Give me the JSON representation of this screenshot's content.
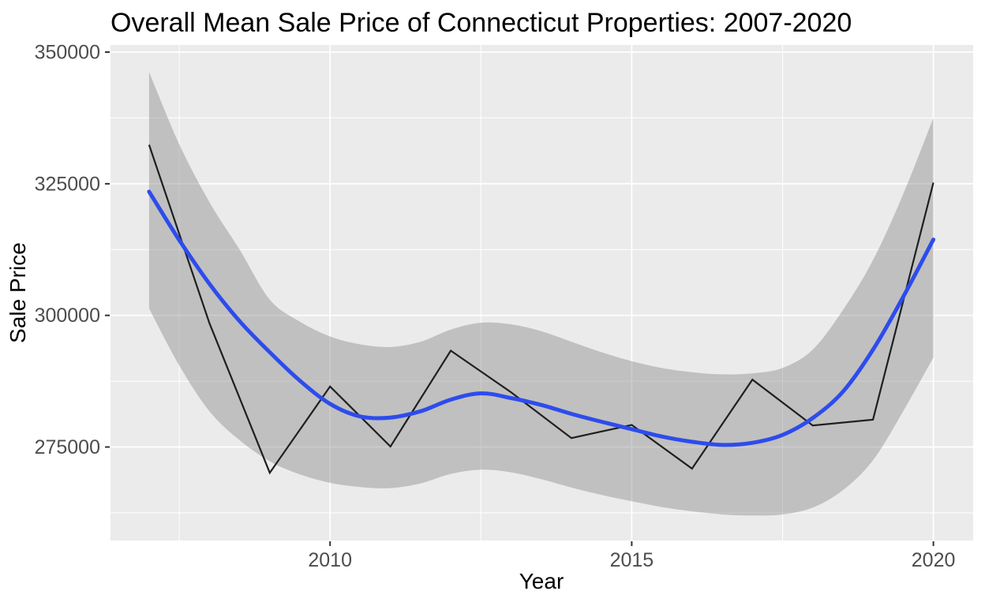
{
  "chart_data": {
    "type": "line",
    "title": "Overall Mean Sale Price of Connecticut Properties: 2007-2020",
    "xlabel": "Year",
    "ylabel": "Sale Price",
    "legend": "none",
    "grid": "on",
    "panel_bg": "#EBEBEB",
    "grid_color": "#FFFFFF",
    "tick_mark_color": "#333333",
    "tick_label_color": "#4D4D4D",
    "x_axis": {
      "lim": [
        2006.36,
        2020.66
      ],
      "major_ticks": [
        {
          "value": 2010,
          "label": "2010"
        },
        {
          "value": 2015,
          "label": "2015"
        },
        {
          "value": 2020,
          "label": "2020"
        }
      ],
      "minor_ticks": [
        2007.5,
        2012.5,
        2017.5
      ]
    },
    "y_axis": {
      "lim": [
        257250,
        351350
      ],
      "major_ticks": [
        {
          "value": 350000,
          "label": "350000"
        },
        {
          "value": 325000,
          "label": "325000"
        },
        {
          "value": 300000,
          "label": "300000"
        },
        {
          "value": 275000,
          "label": "275000"
        }
      ],
      "minor_ticks": [
        337500,
        312500,
        287500,
        262500
      ]
    },
    "series": [
      {
        "name": "mean_sale_price",
        "kind": "line",
        "color": "#1F1F1F",
        "width": 2.2,
        "x": [
          2007,
          2008,
          2009,
          2010,
          2011,
          2012,
          2013,
          2014,
          2015,
          2016,
          2017,
          2018,
          2019,
          2020
        ],
        "values": [
          332400,
          298500,
          270100,
          286500,
          275100,
          293300,
          285400,
          276700,
          279200,
          270900,
          287800,
          279100,
          280200,
          325200
        ]
      },
      {
        "name": "loess_smooth",
        "kind": "smooth",
        "color": "#2D4CEC",
        "width": 5,
        "x": [
          2007,
          2007.5,
          2008,
          2008.5,
          2009,
          2009.5,
          2010,
          2010.5,
          2011,
          2011.5,
          2012,
          2012.5,
          2013,
          2013.5,
          2014,
          2014.5,
          2015,
          2015.5,
          2016,
          2016.5,
          2017,
          2017.5,
          2018,
          2018.5,
          2019,
          2019.5,
          2020
        ],
        "values": [
          323500,
          314300,
          306000,
          298900,
          293000,
          287600,
          283200,
          280800,
          280600,
          281800,
          284000,
          285200,
          284300,
          283000,
          281300,
          279800,
          278400,
          277000,
          276000,
          275400,
          275800,
          277300,
          280500,
          285500,
          293500,
          303500,
          314400
        ]
      }
    ],
    "band": {
      "name": "confidence_interval",
      "color": "rgba(128,128,128,0.4)",
      "x": [
        2007,
        2007.5,
        2008,
        2008.5,
        2009,
        2009.5,
        2010,
        2010.5,
        2011,
        2011.5,
        2012,
        2012.5,
        2013,
        2013.5,
        2014,
        2014.5,
        2015,
        2015.5,
        2016,
        2016.5,
        2017,
        2017.5,
        2018,
        2018.5,
        2019,
        2019.5,
        2020
      ],
      "upper": [
        346200,
        332500,
        321500,
        312500,
        303000,
        298800,
        296000,
        294500,
        294000,
        295000,
        297300,
        298600,
        298300,
        297000,
        295000,
        293000,
        291300,
        290000,
        289200,
        288800,
        289000,
        290000,
        293500,
        301000,
        310500,
        323000,
        337500
      ],
      "lower": [
        301300,
        290500,
        281800,
        276300,
        272300,
        269800,
        268200,
        267400,
        267200,
        268100,
        269900,
        270700,
        270200,
        268900,
        267300,
        265900,
        264700,
        263600,
        262800,
        262200,
        262000,
        262200,
        263500,
        266800,
        272500,
        281800,
        292000
      ]
    }
  }
}
